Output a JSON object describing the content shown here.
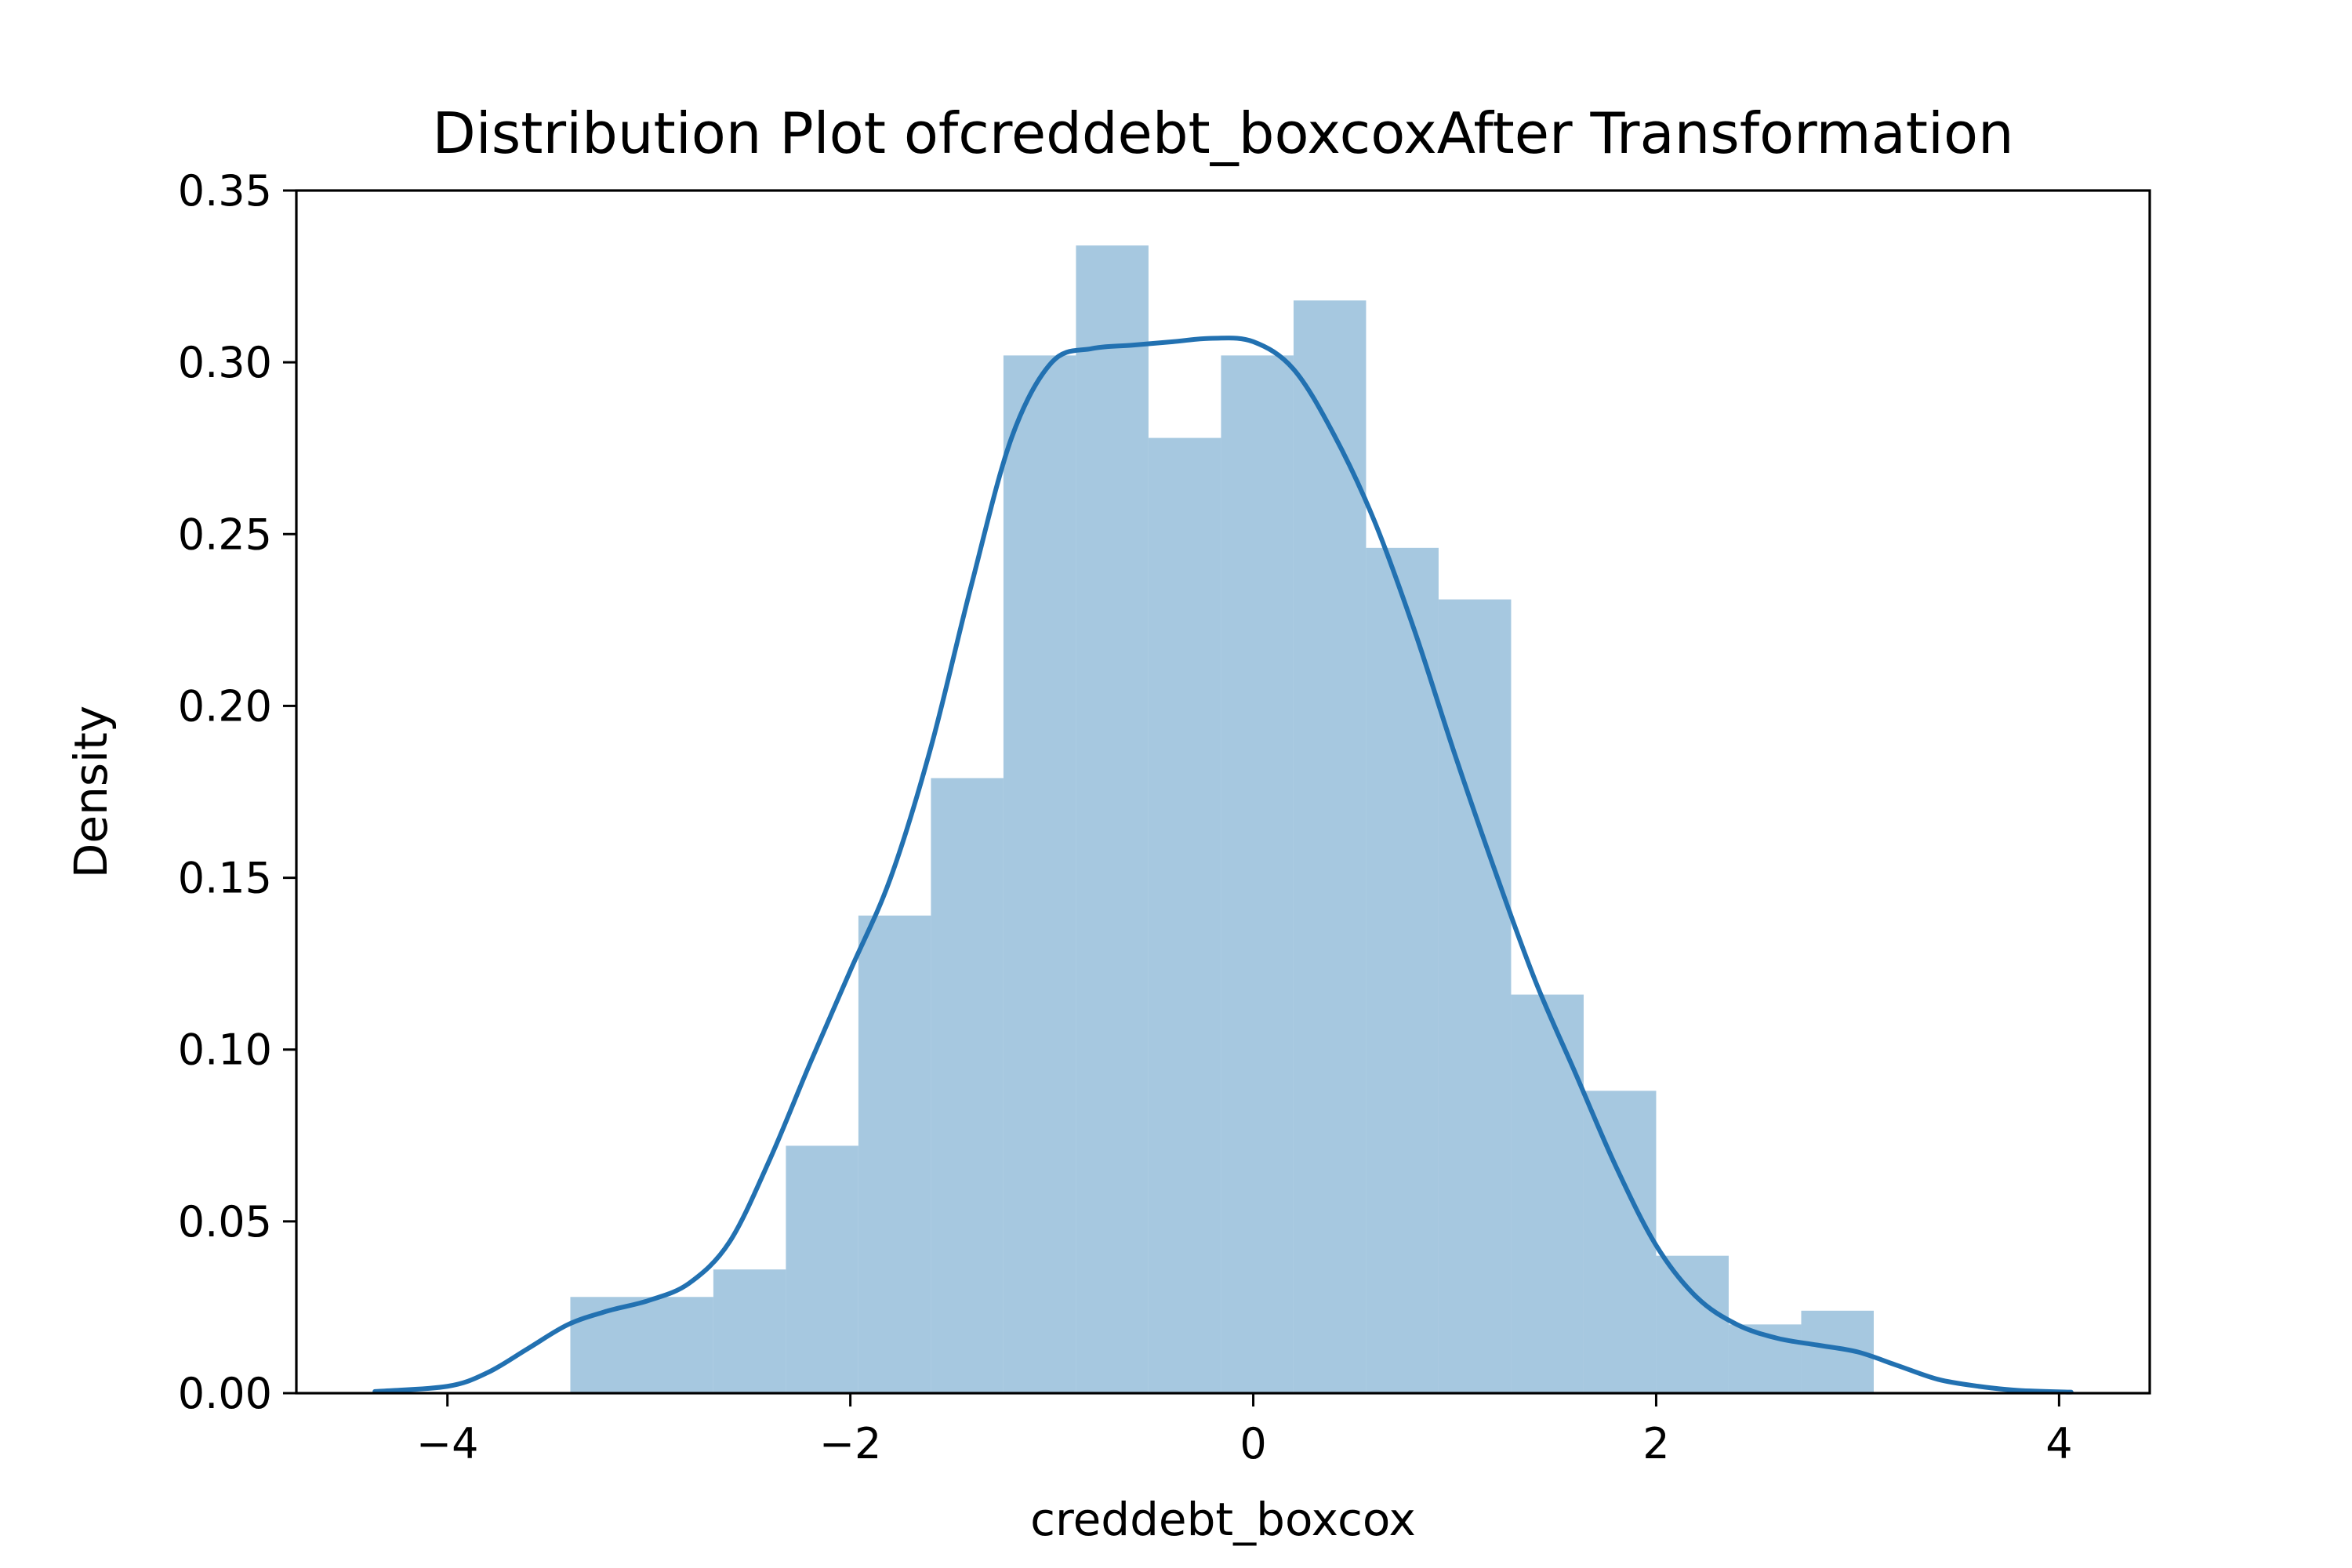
{
  "chart_data": {
    "type": "bar",
    "title": "Distribution Plot ofcreddebt_boxcoxAfter Transformation",
    "xlabel": "creddebt_boxcox",
    "ylabel": "Density",
    "xlim": [
      -4.75,
      4.45
    ],
    "ylim": [
      0,
      0.35
    ],
    "xticks": [
      -4,
      -2,
      0,
      2,
      4
    ],
    "xtick_labels": [
      "−4",
      "−2",
      "0",
      "2",
      "4"
    ],
    "yticks": [
      0.0,
      0.05,
      0.1,
      0.15,
      0.2,
      0.25,
      0.3,
      0.35
    ],
    "ytick_labels": [
      "0.00",
      "0.05",
      "0.10",
      "0.15",
      "0.20",
      "0.25",
      "0.30",
      "0.35"
    ],
    "grid": false,
    "bar_color": "#a6c8e0",
    "line_color": "#2271b1",
    "histogram": {
      "bin_edges": [
        -3.39,
        -2.68,
        -2.32,
        -1.96,
        -1.6,
        -1.24,
        -0.88,
        -0.52,
        -0.16,
        0.2,
        0.56,
        0.92,
        1.28,
        1.64,
        2.0,
        2.36,
        2.72,
        3.08
      ],
      "densities": [
        0.028,
        0.036,
        0.072,
        0.139,
        0.179,
        0.302,
        0.334,
        0.278,
        0.302,
        0.318,
        0.246,
        0.231,
        0.116,
        0.088,
        0.04,
        0.02,
        0.024
      ]
    },
    "kde": {
      "x": [
        -4.36,
        -4.0,
        -3.8,
        -3.6,
        -3.4,
        -3.2,
        -3.0,
        -2.8,
        -2.6,
        -2.4,
        -2.2,
        -2.0,
        -1.8,
        -1.6,
        -1.4,
        -1.2,
        -1.0,
        -0.8,
        -0.6,
        -0.4,
        -0.2,
        0.0,
        0.2,
        0.4,
        0.6,
        0.8,
        1.0,
        1.2,
        1.4,
        1.6,
        1.8,
        2.0,
        2.2,
        2.4,
        2.6,
        2.8,
        3.0,
        3.2,
        3.4,
        3.6,
        3.8,
        4.06
      ],
      "y": [
        0.0005,
        0.002,
        0.006,
        0.013,
        0.02,
        0.024,
        0.027,
        0.032,
        0.044,
        0.068,
        0.096,
        0.123,
        0.15,
        0.188,
        0.235,
        0.278,
        0.3,
        0.304,
        0.305,
        0.306,
        0.307,
        0.306,
        0.298,
        0.279,
        0.254,
        0.222,
        0.186,
        0.152,
        0.12,
        0.093,
        0.066,
        0.043,
        0.028,
        0.02,
        0.016,
        0.014,
        0.012,
        0.008,
        0.004,
        0.002,
        0.0008,
        0.0003
      ]
    }
  }
}
